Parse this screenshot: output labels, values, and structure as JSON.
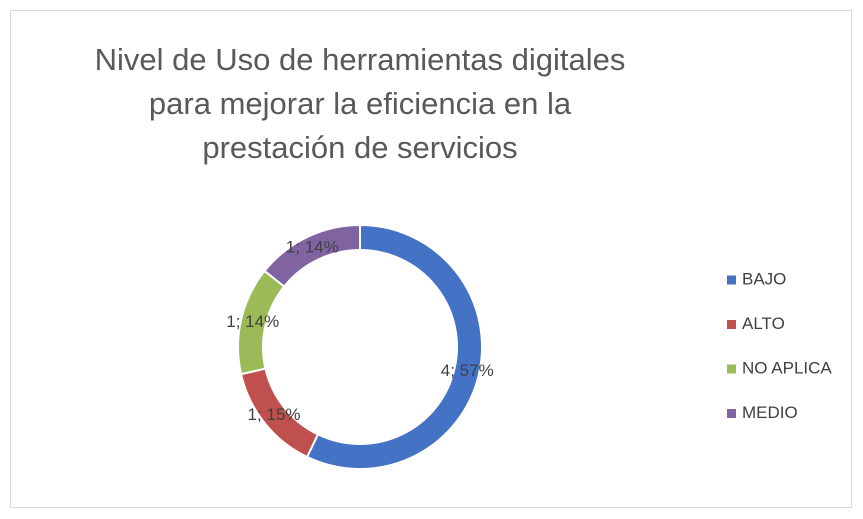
{
  "chart_data": {
    "type": "doughnut",
    "title": "Nivel de Uso de herramientas digitales para mejorar la eficiencia en la prestación de servicios",
    "categories": [
      "BAJO",
      "ALTO",
      "NO APLICA",
      "MEDIO"
    ],
    "values": [
      4,
      1,
      1,
      1
    ],
    "value_labels": [
      "4; 57%",
      "1; 15%",
      "1; 14%",
      "1; 14%"
    ],
    "colors": [
      "#4472c4",
      "#c0504d",
      "#9bbb59",
      "#8064a2"
    ],
    "legend": "right"
  }
}
